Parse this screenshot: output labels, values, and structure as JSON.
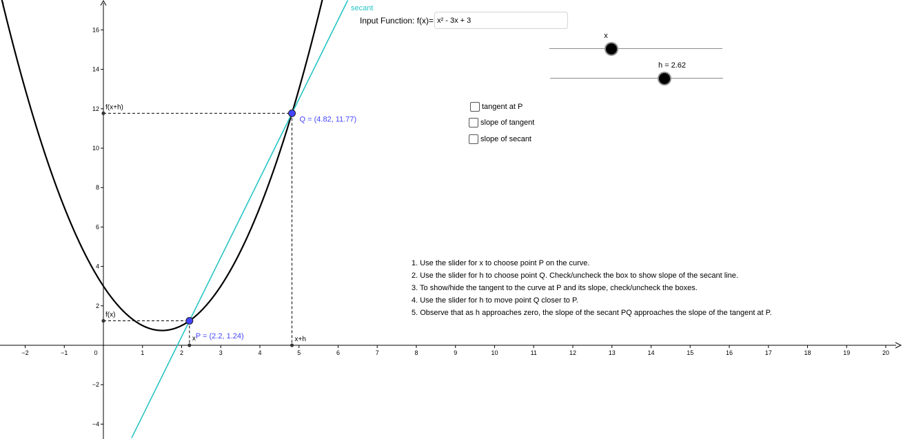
{
  "graph": {
    "function_label": "f",
    "secant_label": "secant",
    "x_ticks": [
      "−2",
      "−1",
      "0",
      "1",
      "2",
      "3",
      "4",
      "5",
      "6",
      "7",
      "8",
      "9",
      "10",
      "11",
      "12",
      "13",
      "14",
      "15",
      "16",
      "17",
      "18",
      "19",
      "20"
    ],
    "y_ticks": [
      "16",
      "14",
      "12",
      "10",
      "8",
      "6",
      "4",
      "2",
      "−2",
      "−4"
    ],
    "axis_color": "#000000",
    "curve_color": "#000000",
    "secant_color": "#27c4c4",
    "point_color": "#4444ff",
    "point_P": {
      "label": "P = (2.2, 1.24)",
      "x": 2.2,
      "y": 1.24
    },
    "point_Q": {
      "label": "Q = (4.82, 11.77)",
      "x": 4.82,
      "y": 11.77
    },
    "labels": {
      "fx": "f(x)",
      "fxh": "f(x+h)",
      "x": "x",
      "xh": "x+h"
    }
  },
  "input": {
    "label": "Input Function: f(x)=",
    "value": "x² - 3x + 3"
  },
  "sliders": {
    "x": {
      "label": "x",
      "value": 2.2
    },
    "h": {
      "label": "h = 2.62",
      "value": 2.62
    }
  },
  "checkboxes": {
    "tangent": {
      "label": "tangent at P",
      "checked": false
    },
    "slope_tangent": {
      "label": "slope of tangent",
      "checked": false
    },
    "slope_secant": {
      "label": "slope of secant",
      "checked": false
    }
  },
  "instructions": [
    "1. Use the slider for x to choose point P on the curve.",
    "2. Use the slider for h to choose point Q. Check/uncheck the box to show slope of the secant line.",
    "3. To show/hide the tangent to the curve at P and its slope, check/uncheck the boxes.",
    "4. Use the slider for h to move point Q closer to P.",
    "5. Observe that as h approaches zero, the slope of the secant PQ approaches the slope of the tangent at P."
  ]
}
